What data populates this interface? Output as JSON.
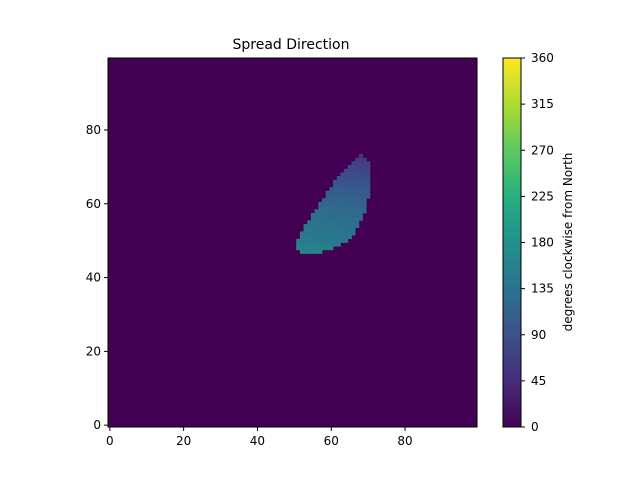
{
  "chart_data": {
    "type": "heatmap",
    "title": "Spread Direction",
    "xlabel": "",
    "ylabel": "",
    "xlim": [
      0,
      99
    ],
    "ylim": [
      0,
      99
    ],
    "x_ticks": [
      "0",
      "20",
      "40",
      "60",
      "80"
    ],
    "y_ticks": [
      "0",
      "20",
      "40",
      "60",
      "80"
    ],
    "background_value": 0,
    "colorbar": {
      "label": "degrees clockwise from North",
      "range": [
        0,
        360
      ],
      "ticks": [
        "0",
        "45",
        "90",
        "135",
        "180",
        "225",
        "270",
        "315",
        "360"
      ],
      "colormap": [
        "#440154",
        "#472d7b",
        "#3b528b",
        "#2c728e",
        "#21918c",
        "#28ae80",
        "#5ec962",
        "#addc30",
        "#fde725"
      ]
    },
    "region": {
      "description": "crescent-shaped burned region with non-zero spread direction",
      "rows": [
        {
          "y": 47,
          "x0": 52,
          "x1": 57,
          "value": 165
        },
        {
          "y": 48,
          "x0": 51,
          "x1": 60,
          "value": 160
        },
        {
          "y": 49,
          "x0": 51,
          "x1": 62,
          "value": 155
        },
        {
          "y": 50,
          "x0": 51,
          "x1": 64,
          "value": 150
        },
        {
          "y": 51,
          "x0": 52,
          "x1": 65,
          "value": 148
        },
        {
          "y": 52,
          "x0": 52,
          "x1": 66,
          "value": 145
        },
        {
          "y": 53,
          "x0": 53,
          "x1": 66,
          "value": 142
        },
        {
          "y": 54,
          "x0": 53,
          "x1": 67,
          "value": 140
        },
        {
          "y": 55,
          "x0": 54,
          "x1": 67,
          "value": 138
        },
        {
          "y": 56,
          "x0": 55,
          "x1": 68,
          "value": 135
        },
        {
          "y": 57,
          "x0": 55,
          "x1": 68,
          "value": 132
        },
        {
          "y": 58,
          "x0": 56,
          "x1": 69,
          "value": 130
        },
        {
          "y": 59,
          "x0": 57,
          "x1": 69,
          "value": 126
        },
        {
          "y": 60,
          "x0": 57,
          "x1": 69,
          "value": 122
        },
        {
          "y": 61,
          "x0": 58,
          "x1": 69,
          "value": 118
        },
        {
          "y": 62,
          "x0": 59,
          "x1": 70,
          "value": 114
        },
        {
          "y": 63,
          "x0": 59,
          "x1": 70,
          "value": 110
        },
        {
          "y": 64,
          "x0": 60,
          "x1": 70,
          "value": 105
        },
        {
          "y": 65,
          "x0": 61,
          "x1": 70,
          "value": 100
        },
        {
          "y": 66,
          "x0": 61,
          "x1": 70,
          "value": 95
        },
        {
          "y": 67,
          "x0": 62,
          "x1": 70,
          "value": 90
        },
        {
          "y": 68,
          "x0": 63,
          "x1": 70,
          "value": 85
        },
        {
          "y": 69,
          "x0": 64,
          "x1": 70,
          "value": 80
        },
        {
          "y": 70,
          "x0": 65,
          "x1": 70,
          "value": 75
        },
        {
          "y": 71,
          "x0": 66,
          "x1": 70,
          "value": 70
        },
        {
          "y": 72,
          "x0": 67,
          "x1": 69,
          "value": 65
        },
        {
          "y": 73,
          "x0": 68,
          "x1": 68,
          "value": 60
        }
      ]
    }
  }
}
